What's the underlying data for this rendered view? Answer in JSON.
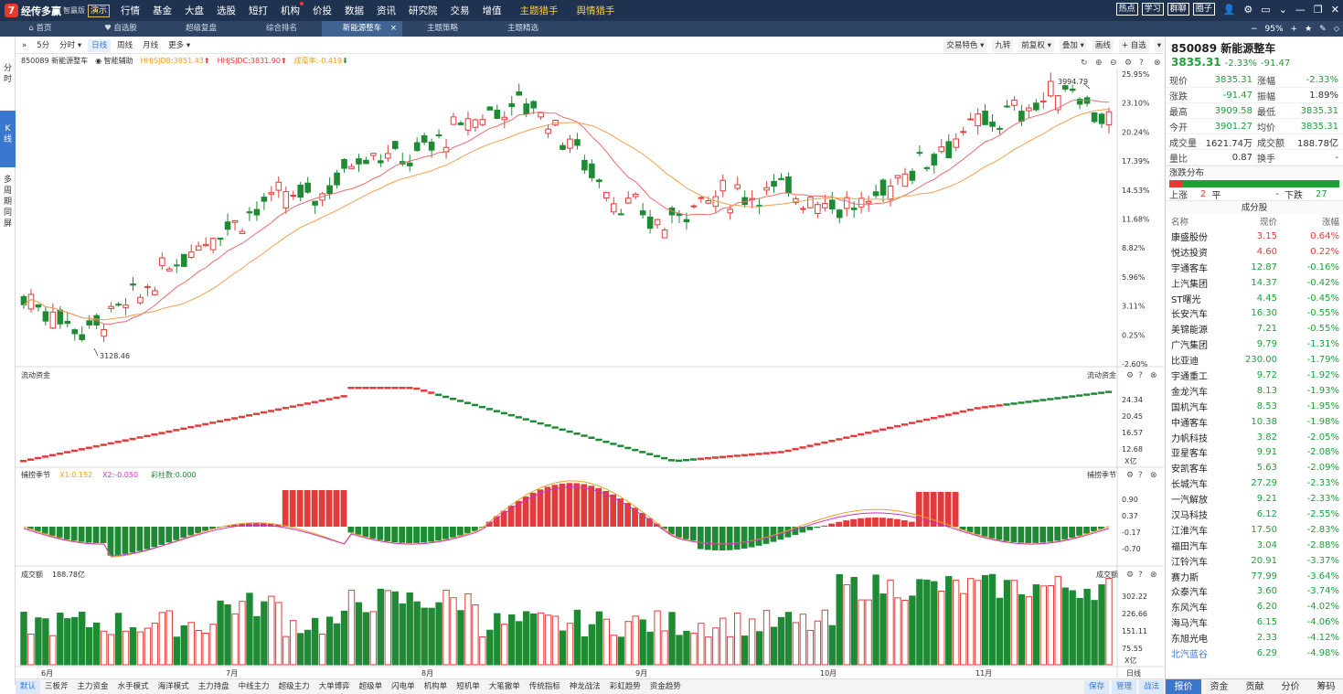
{
  "app": {
    "logo_char": "7",
    "name": "经传多赢",
    "version": "智赢版",
    "demo": "演示"
  },
  "menu": [
    "行情",
    "基金",
    "大盘",
    "选股",
    "短打",
    "机构",
    "价投",
    "数据",
    "资讯",
    "研究院",
    "交易",
    "增值",
    "主题猎手",
    "舆情猎手"
  ],
  "menu_dot": "机构",
  "top_buttons": [
    "热点",
    "学习",
    "群聊",
    "圈子"
  ],
  "top_icons": [
    "user-icon",
    "gear-icon",
    "window-icon",
    "chevron-down-icon",
    "minimize-icon",
    "restore-icon",
    "close-icon"
  ],
  "tabs": [
    {
      "label": "首页",
      "icon": "home-icon"
    },
    {
      "label": "自选股",
      "icon": "heart-icon"
    },
    {
      "label": "超级复盘"
    },
    {
      "label": "综合排名"
    },
    {
      "label": "新能源整车",
      "active": true
    },
    {
      "label": "主题策略"
    },
    {
      "label": "主题精选"
    }
  ],
  "tab_right": {
    "minus": "−",
    "zoom": "95%",
    "plus": "+",
    "star": "★",
    "edit": "✎",
    "pin": "⬦"
  },
  "left_strip": [
    {
      "label": "分时"
    },
    {
      "label": "K线",
      "active": true
    },
    {
      "label": "多周期同屏"
    }
  ],
  "chart_toolbar": {
    "left": [
      {
        "label": "»"
      },
      {
        "label": "5分"
      },
      {
        "label": "分时 ▾"
      },
      {
        "label": "日线",
        "active": true
      },
      {
        "label": "周线"
      },
      {
        "label": "月线"
      },
      {
        "label": "更多 ▾"
      }
    ],
    "right": [
      "交易特色 ▾",
      "九转",
      "前复权 ▾",
      "叠加 ▾",
      "画线",
      "+ 自选",
      "▾"
    ]
  },
  "info_line": {
    "code_name": "850089 新能源整车",
    "assist": "智能辅助",
    "hhjsjdb": "HHJSJDB:3851.43",
    "hhjsjdc": "HHJSJDC:3831.90",
    "rate": "成毫率:-0.419"
  },
  "main_chart": {
    "right_axis_labels": [
      "25.95%",
      "23.10%",
      "20.24%",
      "17.39%",
      "14.53%",
      "11.68%",
      "8.82%",
      "5.96%",
      "3.11%",
      "0.25%",
      "-2.60%"
    ],
    "high_label": "3994.79",
    "low_label": "3128.46",
    "x_labels": [
      "6月",
      "7月",
      "8月",
      "9月",
      "10月",
      "11月",
      "日线"
    ]
  },
  "capital_flow": {
    "label": "流动资金",
    "right_label": "流动资金",
    "axis": [
      "24.34",
      "20.45",
      "16.57",
      "12.68"
    ],
    "unit": "X亿"
  },
  "osc": {
    "label": "捕捞季节",
    "x1": "X1:0.152",
    "x2": "X2:-0.050",
    "bars": "彩柱数:0.000",
    "right_label": "捕捞季节",
    "axis": [
      "0.90",
      "0.37",
      "-0.17",
      "-0.70"
    ]
  },
  "volume": {
    "label": "成交额",
    "value": "188.78亿",
    "right_label": "成交额",
    "axis": [
      "302.22",
      "226.66",
      "151.11",
      "75.55"
    ],
    "unit": "X亿"
  },
  "bottom_tabs": [
    "默认",
    "三板斧",
    "主力资金",
    "水手模式",
    "海洋模式",
    "主力持盘",
    "中线主力",
    "超级主力",
    "大单博弈",
    "超级单",
    "闪电单",
    "机构单",
    "短机单",
    "大笔撤单",
    "传统指标",
    "神龙战法",
    "彩虹趋势",
    "资金趋势"
  ],
  "bottom_right": [
    "保存",
    "管理",
    "战法"
  ],
  "stock": {
    "title": "850089 新能源整车",
    "price": "3835.31",
    "change_pct": "-2.33%",
    "change": "-91.47",
    "quote": [
      [
        "现价",
        "3835.31",
        "涨幅",
        "-2.33%"
      ],
      [
        "涨跌",
        "-91.47",
        "振幅",
        "1.89%"
      ],
      [
        "最高",
        "3909.58",
        "最低",
        "3835.31"
      ],
      [
        "今开",
        "3901.27",
        "均价",
        "3835.31"
      ],
      [
        "成交量",
        "1621.74万",
        "成交额",
        "188.78亿"
      ],
      [
        "量比",
        "0.87",
        "换手",
        "-"
      ]
    ],
    "quote_colors": [
      [
        "g",
        "g"
      ],
      [
        "g",
        "b"
      ],
      [
        "g",
        "g"
      ],
      [
        "g",
        "g"
      ],
      [
        "b",
        "b"
      ],
      [
        "b",
        "b"
      ]
    ]
  },
  "updown": {
    "title": "涨跌分布",
    "up_label": "上涨",
    "up": "2",
    "flat_label": "平",
    "flat": "-",
    "down_label": "下跌",
    "down": "27"
  },
  "constituents": {
    "title": "成分股",
    "headers": [
      "名称",
      "现价",
      "涨幅"
    ],
    "rows": [
      [
        "康盛股份",
        "3.15",
        "0.64%"
      ],
      [
        "悦达投资",
        "4.60",
        "0.22%"
      ],
      [
        "宇通客车",
        "12.87",
        "-0.16%"
      ],
      [
        "上汽集团",
        "14.37",
        "-0.42%"
      ],
      [
        "ST曙光",
        "4.45",
        "-0.45%"
      ],
      [
        "长安汽车",
        "16.30",
        "-0.55%"
      ],
      [
        "美锦能源",
        "7.21",
        "-0.55%"
      ],
      [
        "广汽集团",
        "9.79",
        "-1.31%"
      ],
      [
        "比亚迪",
        "230.00",
        "-1.79%"
      ],
      [
        "宇通重工",
        "9.72",
        "-1.92%"
      ],
      [
        "金龙汽车",
        "8.13",
        "-1.93%"
      ],
      [
        "国机汽车",
        "8.53",
        "-1.95%"
      ],
      [
        "中通客车",
        "10.38",
        "-1.98%"
      ],
      [
        "力帆科技",
        "3.82",
        "-2.05%"
      ],
      [
        "亚星客车",
        "9.91",
        "-2.08%"
      ],
      [
        "安凯客车",
        "5.63",
        "-2.09%"
      ],
      [
        "长城汽车",
        "27.29",
        "-2.33%"
      ],
      [
        "一汽解放",
        "9.21",
        "-2.33%"
      ],
      [
        "汉马科技",
        "6.12",
        "-2.55%"
      ],
      [
        "江淮汽车",
        "17.50",
        "-2.83%"
      ],
      [
        "福田汽车",
        "3.04",
        "-2.88%"
      ],
      [
        "江铃汽车",
        "20.91",
        "-3.37%"
      ],
      [
        "赛力斯",
        "77.99",
        "-3.64%"
      ],
      [
        "众泰汽车",
        "3.60",
        "-3.74%"
      ],
      [
        "东风汽车",
        "6.20",
        "-4.02%"
      ],
      [
        "海马汽车",
        "6.15",
        "-4.06%"
      ],
      [
        "东旭光电",
        "2.33",
        "-4.12%"
      ],
      [
        "北汽蓝谷",
        "6.29",
        "-4.98%"
      ]
    ]
  },
  "right_tabs": [
    "报价",
    "资金",
    "贡献",
    "分价",
    "筹码"
  ],
  "colors": {
    "up": "#e23b3b",
    "down": "#1e8a34",
    "ma_red": "#ef6a6a",
    "ma_orange": "#f0a050",
    "accent": "#3a78cf"
  }
}
